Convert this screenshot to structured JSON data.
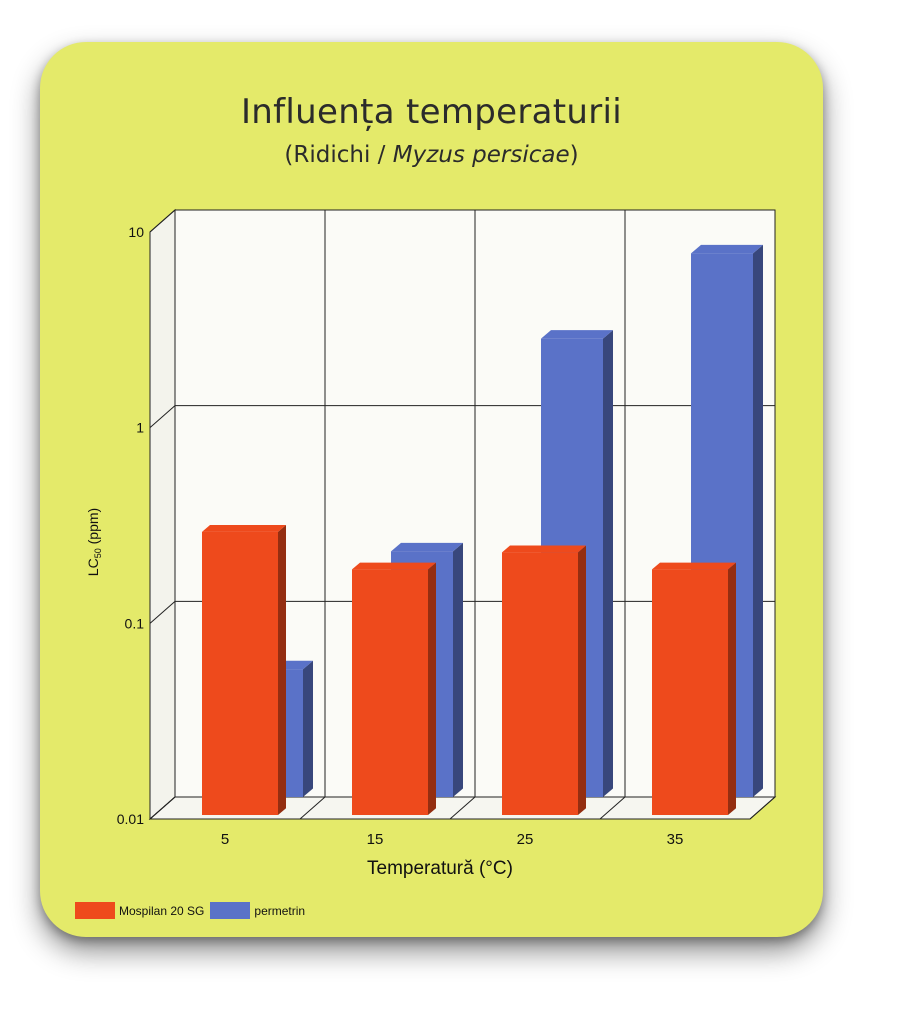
{
  "title": "Influența temperaturii",
  "subtitle_plain": "(Ridichi / ",
  "subtitle_italic": "Myzus persicae",
  "subtitle_end": ")",
  "chart_data": {
    "type": "bar",
    "scale": "log",
    "xlabel": "Temperatură (°C)",
    "ylabel_main": "LC",
    "ylabel_sub": "50",
    "ylabel_unit": " (ppm)",
    "categories": [
      "5",
      "15",
      "25",
      "35"
    ],
    "ylim": [
      0.01,
      10
    ],
    "yticks": [
      {
        "value": 0.01,
        "label": "0.01"
      },
      {
        "value": 0.1,
        "label": "0.1"
      },
      {
        "value": 1,
        "label": "1"
      },
      {
        "value": 10,
        "label": "10"
      }
    ],
    "grid": true,
    "legend_position": "bottom-left",
    "series": [
      {
        "name": "Mospilan 20 SG",
        "color": "#ee4a1c",
        "values": [
          0.28,
          0.18,
          0.22,
          0.18
        ]
      },
      {
        "name": "permetrin",
        "color": "#5a72c8",
        "values": [
          0.045,
          0.18,
          2.2,
          6.0
        ]
      }
    ]
  }
}
